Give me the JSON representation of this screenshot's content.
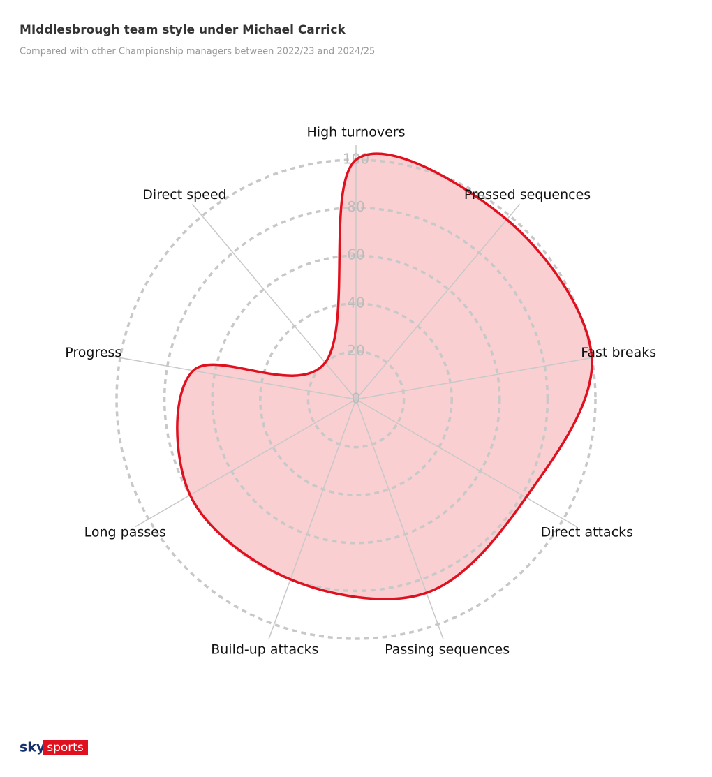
{
  "chart_data": {
    "type": "radar",
    "title": "MIddlesbrough team style under Michael Carrick",
    "subtitle": "Compared with other Championship managers between 2022/23 and 2024/25",
    "categories": [
      "High turnovers",
      "Pressed sequences",
      "Fast breaks",
      "Direct attacks",
      "Passing sequences",
      "Build-up attacks",
      "Long passes",
      "Progress",
      "Direct speed"
    ],
    "series": [
      {
        "color": "#e0101e",
        "values": [
          100,
          98,
          100,
          82,
          86,
          80,
          80,
          69,
          20
        ]
      }
    ],
    "rlim": [
      0,
      100
    ],
    "rticks": [
      0,
      20,
      40,
      60,
      80,
      100
    ],
    "grid": true
  },
  "footer": {
    "brand": "sky",
    "product": "sports"
  }
}
